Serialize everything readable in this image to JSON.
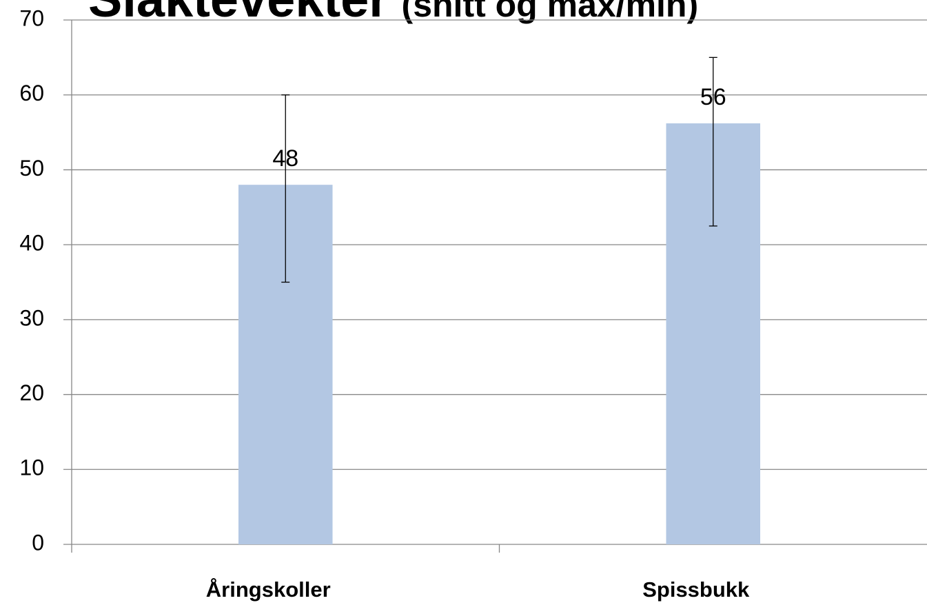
{
  "chart_data": {
    "type": "bar",
    "title": "Slaktevekter",
    "subtitle": "(snitt og max/min)",
    "categories": [
      "Åringskoller",
      "Spissbukk"
    ],
    "values": [
      48,
      56.2
    ],
    "value_labels": [
      "48",
      "56"
    ],
    "min": [
      35,
      42.5
    ],
    "max": [
      60,
      65
    ],
    "color": "#b3c7e3",
    "ylim": [
      0,
      70
    ],
    "yticks": [
      0,
      10,
      20,
      30,
      40,
      50,
      60,
      70
    ],
    "grid": true
  }
}
